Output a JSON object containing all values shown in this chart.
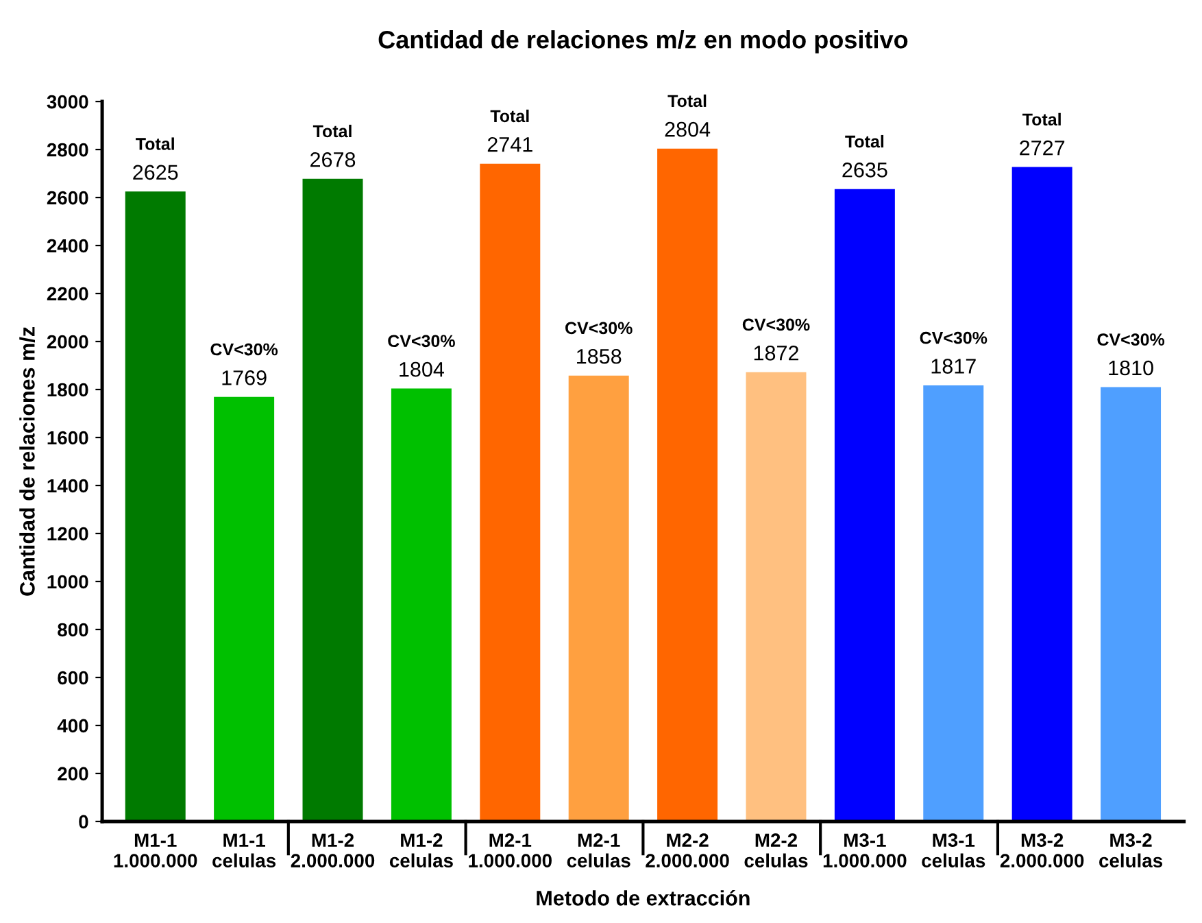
{
  "chart_data": {
    "type": "bar",
    "title": "Cantidad de relaciones m/z en modo positivo",
    "xlabel": "Metodo de extracción",
    "ylabel": "Cantidad de relaciones m/z",
    "categories": [
      "M1-1\n1.000.000",
      "M1-1\ncelulas",
      "M1-2\n2.000.000",
      "M1-2\ncelulas",
      "M2-1\n1.000.000",
      "M2-1\ncelulas",
      "M2-2\n2.000.000",
      "M2-2\ncelulas",
      "M3-1\n1.000.000",
      "M3-1\ncelulas",
      "M3-2\n2.000.000",
      "M3-2\ncelulas"
    ],
    "values": [
      2625,
      1769,
      2678,
      1804,
      2741,
      1858,
      2804,
      1872,
      2635,
      1817,
      2727,
      1810
    ],
    "colors": [
      "#007a00",
      "#00c000",
      "#007a00",
      "#00c000",
      "#ff6600",
      "#ffa040",
      "#ff6600",
      "#ffc080",
      "#0000ff",
      "#4f9fff",
      "#0000ff",
      "#4f9fff"
    ],
    "value_labels": [
      "Total\n2625",
      "CV<30%\n1769",
      "Total\n2678",
      "CV<30%\n1804",
      "Total\n2741",
      "CV<30%\n1858",
      "Total\n2804",
      "CV<30%\n1872",
      "Total\n2635",
      "CV<30%\n1817",
      "Total\n2727",
      "CV<30%\n1810"
    ],
    "ylim": [
      0,
      3000
    ],
    "yticks": [
      0,
      200,
      400,
      600,
      800,
      1000,
      1200,
      1400,
      1600,
      1800,
      2000,
      2200,
      2400,
      2600,
      2800,
      3000
    ],
    "grid": false,
    "legend": false
  }
}
